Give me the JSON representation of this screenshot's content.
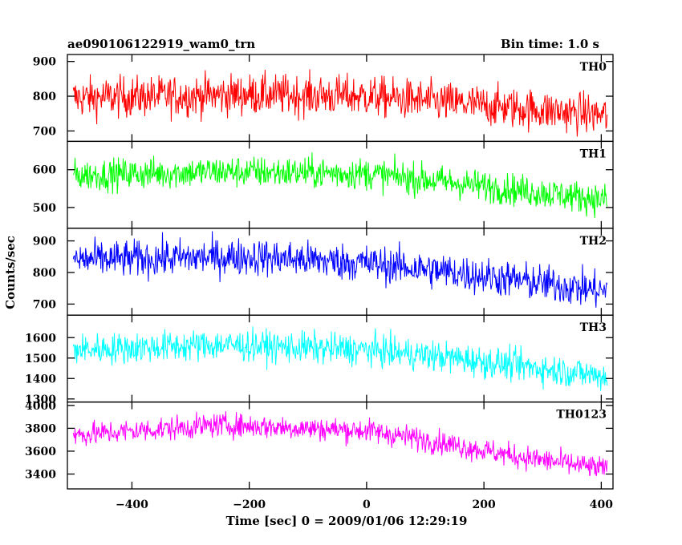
{
  "header": {
    "title": "ae090106122919_wam0_trn",
    "bin_time": "Bin time: 1.0 s"
  },
  "chart_data": {
    "type": "line",
    "xlabel": "Time [sec] 0 = 2009/01/06 12:29:19",
    "ylabel": "Counts/sec",
    "xlim": [
      -510,
      420
    ],
    "xticks": [
      -400,
      -200,
      0,
      200,
      400
    ],
    "xtick_labels": [
      "−400",
      "−200",
      "0",
      "200",
      "400"
    ],
    "series": [
      {
        "name": "TH0",
        "color": "#ff0000",
        "ylim": [
          670,
          920
        ],
        "yticks": [
          700,
          800,
          900
        ],
        "x_range": [
          -500,
          410
        ],
        "trend": [
          [
            -500,
            795
          ],
          [
            -200,
            805
          ],
          [
            0,
            800
          ],
          [
            150,
            780
          ],
          [
            410,
            745
          ]
        ],
        "noise": 42
      },
      {
        "name": "TH1",
        "color": "#00ff00",
        "ylim": [
          445,
          675
        ],
        "yticks": [
          500,
          600
        ],
        "x_range": [
          -500,
          410
        ],
        "trend": [
          [
            -500,
            585
          ],
          [
            -250,
            595
          ],
          [
            0,
            590
          ],
          [
            150,
            565
          ],
          [
            410,
            520
          ]
        ],
        "noise": 30
      },
      {
        "name": "TH2",
        "color": "#0000ff",
        "ylim": [
          665,
          940
        ],
        "yticks": [
          700,
          800,
          900
        ],
        "x_range": [
          -500,
          410
        ],
        "trend": [
          [
            -500,
            840
          ],
          [
            -200,
            850
          ],
          [
            0,
            830
          ],
          [
            150,
            800
          ],
          [
            410,
            740
          ]
        ],
        "noise": 42
      },
      {
        "name": "TH3",
        "color": "#00ffff",
        "ylim": [
          1285,
          1710
        ],
        "yticks": [
          1300,
          1400,
          1500,
          1600
        ],
        "x_range": [
          -500,
          410
        ],
        "trend": [
          [
            -500,
            1540
          ],
          [
            -250,
            1565
          ],
          [
            0,
            1540
          ],
          [
            150,
            1500
          ],
          [
            410,
            1410
          ]
        ],
        "noise": 55
      },
      {
        "name": "TH0123",
        "color": "#ff00ff",
        "ylim": [
          3270,
          4030
        ],
        "yticks": [
          3400,
          3600,
          3800,
          4000
        ],
        "x_range": [
          -500,
          410
        ],
        "trend": [
          [
            -500,
            3740
          ],
          [
            -250,
            3830
          ],
          [
            0,
            3780
          ],
          [
            100,
            3700
          ],
          [
            250,
            3560
          ],
          [
            410,
            3440
          ]
        ],
        "noise": 75
      }
    ]
  }
}
